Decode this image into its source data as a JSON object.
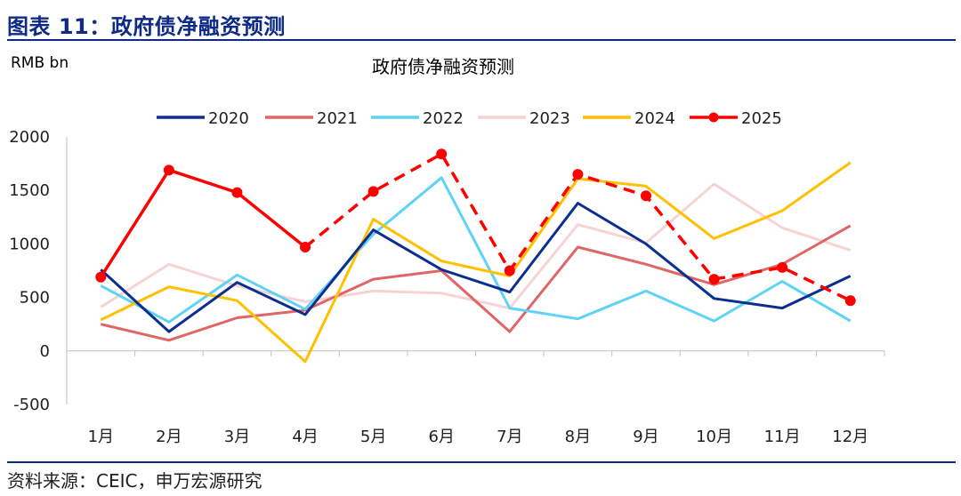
{
  "header": {
    "title": "图表 11：政府债净融资预测"
  },
  "footer": {
    "source": "资料来源：CEIC，申万宏源研究"
  },
  "chart_data": {
    "type": "line",
    "title": "政府债净融资预测",
    "unit_label": "RMB bn",
    "xlabel": "",
    "ylabel": "",
    "categories": [
      "1月",
      "2月",
      "3月",
      "4月",
      "5月",
      "6月",
      "7月",
      "8月",
      "9月",
      "10月",
      "11月",
      "12月"
    ],
    "ylim": [
      -500,
      2000
    ],
    "yticks": [
      -500,
      0,
      500,
      1000,
      1500,
      2000
    ],
    "legend_position": "top",
    "grid": false,
    "series": [
      {
        "name": "2020",
        "color": "#0c2f8f",
        "style": "solid",
        "values": [
          760,
          180,
          640,
          340,
          1130,
          760,
          550,
          1380,
          1000,
          490,
          400,
          700
        ]
      },
      {
        "name": "2021",
        "color": "#e06666",
        "style": "solid",
        "values": [
          250,
          100,
          310,
          380,
          670,
          750,
          180,
          970,
          810,
          620,
          810,
          1170
        ]
      },
      {
        "name": "2022",
        "color": "#5fd3f3",
        "style": "solid",
        "values": [
          610,
          270,
          710,
          390,
          1090,
          1620,
          400,
          300,
          560,
          280,
          650,
          280
        ]
      },
      {
        "name": "2023",
        "color": "#f8d3d3",
        "style": "solid",
        "values": [
          410,
          810,
          610,
          460,
          560,
          540,
          400,
          1180,
          1010,
          1560,
          1150,
          940
        ]
      },
      {
        "name": "2024",
        "color": "#ffc000",
        "style": "solid",
        "values": [
          290,
          600,
          470,
          -100,
          1230,
          840,
          700,
          1610,
          1540,
          1050,
          1310,
          1760
        ]
      },
      {
        "name": "2025",
        "color": "#ff0000",
        "style": "mixed",
        "markers": true,
        "dashed_from_index": 3,
        "values": [
          690,
          1690,
          1480,
          970,
          1490,
          1840,
          750,
          1650,
          1450,
          670,
          780,
          470
        ]
      }
    ]
  }
}
